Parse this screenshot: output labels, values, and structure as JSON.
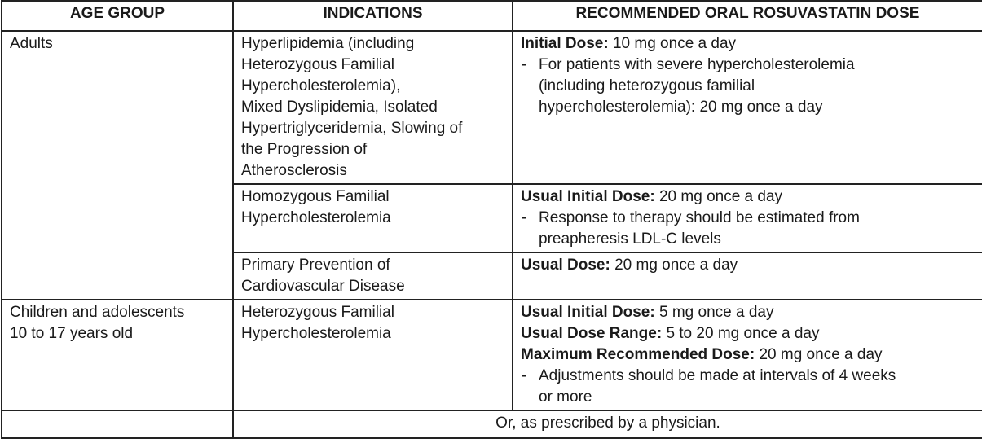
{
  "table": {
    "headers": [
      "AGE GROUP",
      "INDICATIONS",
      "RECOMMENDED ORAL ROSUVASTATIN DOSE"
    ],
    "note_marker": "-",
    "groups": [
      {
        "age_group": [
          "Adults"
        ],
        "entries": [
          {
            "indication": [
              "Hyperlipidemia (including",
              "Heterozygous Familial",
              "Hypercholesterolemia),",
              "Mixed Dyslipidemia, Isolated",
              "Hypertriglyceridemia, Slowing of",
              "the Progression of",
              "Atherosclerosis"
            ],
            "doses": [
              {
                "label": "Initial Dose:",
                "text": "10 mg once a day"
              }
            ],
            "note": [
              "For patients with severe hypercholesterolemia",
              "(including heterozygous familial",
              "hypercholesterolemia): 20 mg once a day"
            ]
          },
          {
            "indication": [
              "Homozygous Familial",
              "Hypercholesterolemia"
            ],
            "doses": [
              {
                "label": "Usual Initial Dose:",
                "text": "20 mg once a day"
              }
            ],
            "note": [
              "Response to therapy should be estimated from",
              "preapheresis LDL-C levels"
            ]
          },
          {
            "indication": [
              "Primary Prevention of",
              "Cardiovascular Disease"
            ],
            "doses": [
              {
                "label": "Usual Dose:",
                "text": "20 mg once a day"
              }
            ]
          }
        ]
      },
      {
        "age_group": [
          "Children and adolescents",
          "10 to 17 years old"
        ],
        "entries": [
          {
            "indication": [
              "Heterozygous Familial",
              "Hypercholesterolemia"
            ],
            "doses": [
              {
                "label": "Usual Initial Dose:",
                "text": "5 mg once a day"
              },
              {
                "label": "Usual Dose Range:",
                "text": "5 to 20 mg once a day"
              },
              {
                "label": "Maximum Recommended Dose:",
                "text": "20 mg once a day"
              }
            ],
            "note": [
              "Adjustments should be made at intervals of 4 weeks",
              "or more"
            ]
          }
        ]
      }
    ],
    "footer": "Or, as prescribed by a physician."
  }
}
